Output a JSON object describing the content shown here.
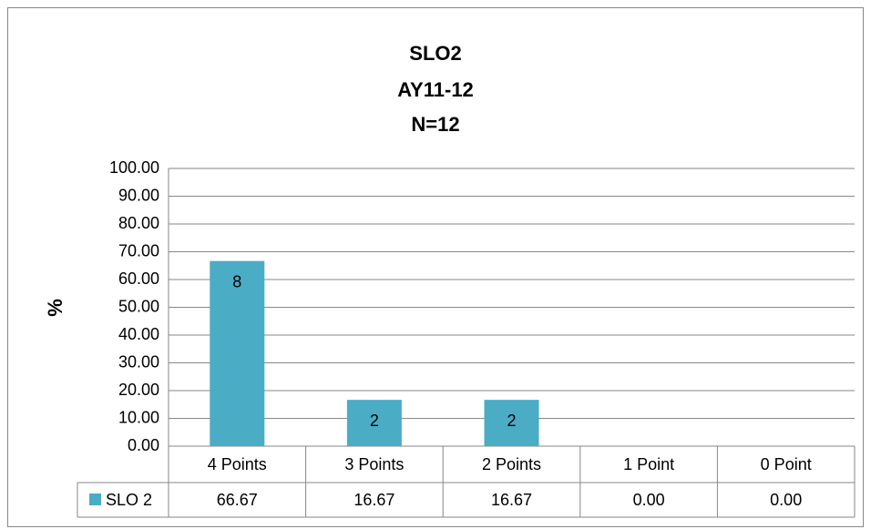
{
  "chart_data": {
    "type": "bar",
    "title": "SLO2",
    "subtitle": [
      "AY11-12",
      "N=12"
    ],
    "y_label": "%",
    "categories": [
      "4 Points",
      "3 Points",
      "2 Points",
      "1 Point",
      "0 Point"
    ],
    "series": [
      {
        "name": "SLO 2",
        "color": "#4bacc6",
        "values": [
          66.67,
          16.67,
          16.67,
          0,
          0
        ],
        "value_labels": [
          "66.67",
          "16.67",
          "16.67",
          "0.00",
          "0.00"
        ]
      }
    ],
    "bar_labels": [
      "8",
      "2",
      "2"
    ],
    "ylim": [
      0,
      100
    ],
    "yticks": [
      {
        "value": 0,
        "label": "0.00"
      },
      {
        "value": 10,
        "label": "10.00"
      },
      {
        "value": 20,
        "label": "20.00"
      },
      {
        "value": 30,
        "label": "30.00"
      },
      {
        "value": 40,
        "label": "40.00"
      },
      {
        "value": 50,
        "label": "50.00"
      },
      {
        "value": 60,
        "label": "60.00"
      },
      {
        "value": 70,
        "label": "70.00"
      },
      {
        "value": 80,
        "label": "80.00"
      },
      {
        "value": 90,
        "label": "90.00"
      },
      {
        "value": 100,
        "label": "100.00"
      }
    ],
    "grid": true,
    "data_table": true
  }
}
